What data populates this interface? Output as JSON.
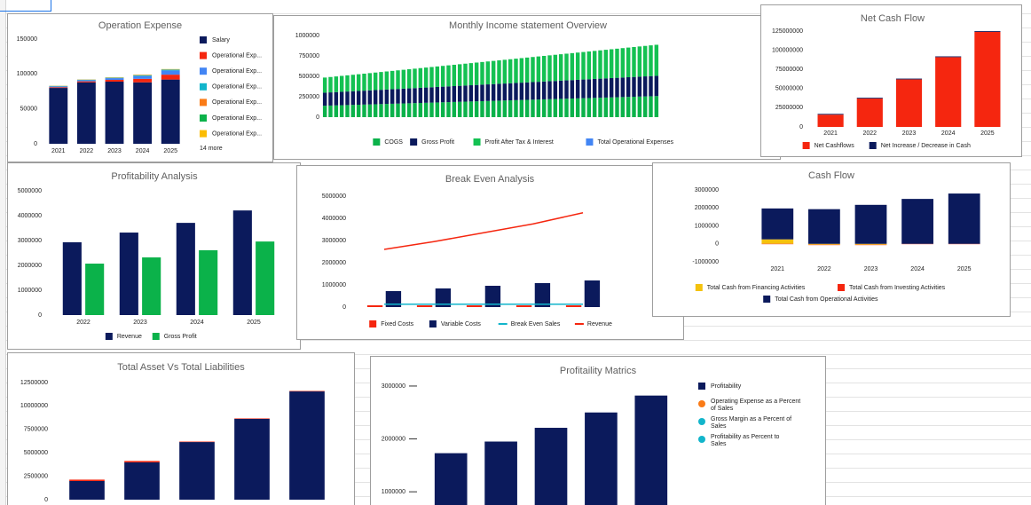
{
  "chart_data": [
    {
      "type": "bar",
      "title": "Operation Expense",
      "stacked": true,
      "grid": false,
      "legend": "right",
      "categories": [
        "2021",
        "2022",
        "2023",
        "2024",
        "2025"
      ],
      "ylim": [
        0,
        150000
      ],
      "yticks": [
        0,
        50000,
        100000,
        150000
      ],
      "series": [
        {
          "name": "Salary",
          "color": "#0b1a5c",
          "values": [
            80000,
            88000,
            89000,
            88000,
            92000
          ]
        },
        {
          "name": "Operational Exp...",
          "color": "#f5260f",
          "values": [
            1000,
            1500,
            2500,
            5000,
            7000
          ]
        },
        {
          "name": "Operational Exp...",
          "color": "#4285f4",
          "values": [
            1000,
            1500,
            2500,
            4000,
            6000
          ]
        },
        {
          "name": "Operational Exp...",
          "color": "#12b5cb",
          "values": [
            500,
            500,
            500,
            1000,
            1000
          ]
        },
        {
          "name": "Operational Exp...",
          "color": "#fa7b17",
          "values": [
            300,
            300,
            300,
            500,
            500
          ]
        },
        {
          "name": "Operational Exp...",
          "color": "#0bb24a",
          "values": [
            200,
            200,
            300,
            300,
            300
          ]
        },
        {
          "name": "Operational Exp...",
          "color": "#fbbc04",
          "values": [
            100,
            100,
            200,
            200,
            200
          ]
        }
      ],
      "legend_more": "14 more"
    },
    {
      "type": "bar",
      "title": "Monthly Income statement Overview",
      "stacked": true,
      "grid": false,
      "legend": "bottom",
      "categories": [
        null,
        null,
        null,
        null,
        null,
        null,
        null,
        null,
        null,
        null,
        null,
        null,
        null,
        null,
        null,
        null,
        null,
        null,
        null,
        null,
        null,
        null,
        null,
        null,
        null,
        null,
        null,
        null,
        null,
        null,
        null,
        null,
        null,
        null,
        null,
        null,
        null,
        null,
        null,
        null,
        null,
        null,
        null,
        null,
        null,
        null,
        null,
        null,
        null,
        null,
        null,
        null,
        null,
        null,
        null,
        null,
        null,
        null,
        null,
        null
      ],
      "ylim": [
        0,
        1000000
      ],
      "yticks": [
        0,
        250000,
        500000,
        750000,
        1000000
      ],
      "series": [
        {
          "name": "COGS",
          "color": "#0bb24a",
          "values": [
            140000,
            142000,
            144000,
            146000,
            148000,
            150000,
            152000,
            154000,
            156000,
            158000,
            160000,
            162000,
            164000,
            166000,
            168000,
            170000,
            172000,
            174000,
            176000,
            178000,
            180000,
            182000,
            184000,
            186000,
            188000,
            190000,
            192000,
            194000,
            196000,
            198000,
            200000,
            202000,
            204000,
            206000,
            208000,
            210000,
            212000,
            214000,
            216000,
            218000,
            220000,
            222000,
            224000,
            226000,
            228000,
            230000,
            232000,
            234000,
            236000,
            238000,
            240000,
            242000,
            244000,
            246000,
            248000,
            250000,
            252000,
            254000,
            256000,
            258000
          ]
        },
        {
          "name": "Gross Profit",
          "color": "#0b1a5c",
          "values": [
            160000,
            161500,
            163000,
            164500,
            166000,
            167500,
            169000,
            170500,
            172000,
            173500,
            175000,
            176500,
            178000,
            179500,
            181000,
            182500,
            184000,
            185500,
            187000,
            188500,
            190000,
            191500,
            193000,
            194500,
            196000,
            197500,
            199000,
            200500,
            202000,
            203500,
            205000,
            206500,
            208000,
            209500,
            211000,
            212500,
            214000,
            215500,
            217000,
            218500,
            220000,
            221500,
            223000,
            224500,
            226000,
            227500,
            229000,
            230500,
            232000,
            233500,
            235000,
            236500,
            238000,
            239500,
            241000,
            242500,
            244000,
            245500,
            247000,
            248500
          ]
        },
        {
          "name": "Profit After Tax & Interest",
          "color": "#14c152",
          "values": [
            185000,
            188300,
            191600,
            194900,
            198200,
            201500,
            204800,
            208100,
            211400,
            214700,
            218000,
            221300,
            224600,
            227900,
            231200,
            234500,
            237800,
            241100,
            244400,
            247700,
            251000,
            254300,
            257600,
            260900,
            264200,
            267500,
            270800,
            274100,
            277400,
            280700,
            284000,
            287300,
            290600,
            293900,
            297200,
            300500,
            303800,
            307100,
            310400,
            313700,
            317000,
            320300,
            323600,
            326900,
            330200,
            333500,
            336800,
            340100,
            343400,
            346700,
            350000,
            353300,
            356600,
            359900,
            363200,
            366500,
            369800,
            373100,
            376400,
            379700
          ]
        },
        {
          "name": "Total Operational Expenses",
          "color": "#4285f4",
          "values": [
            0,
            0,
            0,
            0,
            0,
            0,
            0,
            0,
            0,
            0,
            0,
            0,
            0,
            0,
            0,
            0,
            0,
            0,
            0,
            0,
            0,
            0,
            0,
            0,
            0,
            0,
            0,
            0,
            0,
            0,
            0,
            0,
            0,
            0,
            0,
            0,
            0,
            0,
            0,
            0,
            0,
            0,
            0,
            0,
            0,
            0,
            0,
            0,
            0,
            0,
            0,
            0,
            0,
            0,
            0,
            0,
            0,
            0,
            0,
            0
          ]
        }
      ]
    },
    {
      "type": "bar",
      "title": "Net Cash Flow",
      "stacked": true,
      "grid": false,
      "legend": "bottom",
      "categories": [
        "2021",
        "2022",
        "2023",
        "2024",
        "2025"
      ],
      "ylim": [
        0,
        125000000
      ],
      "yticks": [
        0,
        25000000,
        50000000,
        75000000,
        100000000,
        125000000
      ],
      "series": [
        {
          "name": "Net Cashflows",
          "color": "#f5260f",
          "values": [
            16000000,
            37000000,
            62000000,
            91000000,
            124000000
          ]
        },
        {
          "name": "Net Increase / Decrease in Cash",
          "color": "#0b1a5c",
          "values": [
            1000000,
            1000000,
            1000000,
            1000000,
            1000000
          ]
        }
      ]
    },
    {
      "type": "bar",
      "title": "Profitability Analysis",
      "stacked": false,
      "grid": false,
      "legend": "bottom",
      "categories": [
        "2022",
        "2023",
        "2024",
        "2025"
      ],
      "ylim": [
        0,
        5000000
      ],
      "yticks": [
        0,
        1000000,
        2000000,
        3000000,
        4000000,
        5000000
      ],
      "series": [
        {
          "name": "Revenue",
          "color": "#0b1a5c",
          "values": [
            2930000,
            3320000,
            3710000,
            4210000
          ]
        },
        {
          "name": "Gross Profit",
          "color": "#0bb24a",
          "values": [
            2070000,
            2320000,
            2610000,
            2960000
          ]
        }
      ]
    },
    {
      "type": "combo",
      "title": "Break Even Analysis",
      "stacked": false,
      "grid": false,
      "legend": "bottom",
      "categories": [
        null,
        null,
        null,
        null,
        null
      ],
      "ylim": [
        0,
        5000000
      ],
      "yticks": [
        0,
        1000000,
        2000000,
        3000000,
        4000000,
        5000000
      ],
      "series": [
        {
          "name": "Fixed Costs",
          "kind": "bar",
          "color": "#f5260f",
          "values": [
            80000,
            80000,
            80000,
            80000,
            80000
          ]
        },
        {
          "name": "Variable Costs",
          "kind": "bar",
          "color": "#0b1a5c",
          "values": [
            720000,
            840000,
            960000,
            1080000,
            1200000
          ]
        },
        {
          "name": "Break Even Sales",
          "kind": "line",
          "color": "#12b5cb",
          "values": [
            130000,
            130000,
            130000,
            130000,
            130000
          ]
        },
        {
          "name": "Revenue",
          "kind": "line",
          "color": "#f5260f",
          "values": [
            2600000,
            2950000,
            3350000,
            3750000,
            4250000
          ]
        }
      ]
    },
    {
      "type": "bar",
      "title": "Cash Flow",
      "stacked": true,
      "grid": false,
      "legend": "bottom",
      "categories": [
        "2021",
        "2022",
        "2023",
        "2024",
        "2025"
      ],
      "ylim": [
        -1000000,
        3000000
      ],
      "yticks": [
        -1000000,
        0,
        1000000,
        2000000,
        3000000
      ],
      "series": [
        {
          "name": "Total Cash from Financing Activities",
          "color": "#f4c20d",
          "values": [
            250000,
            -50000,
            -50000,
            0,
            0
          ]
        },
        {
          "name": "Total Cash from Investing Activities",
          "color": "#f5260f",
          "values": [
            -20000,
            -20000,
            -20000,
            -20000,
            -20000
          ]
        },
        {
          "name": "Total Cash from Operational Activities",
          "color": "#0b1a5c",
          "values": [
            1720000,
            1930000,
            2170000,
            2500000,
            2800000
          ]
        }
      ]
    },
    {
      "type": "bar",
      "title": "Total Asset Vs Total Liabilities",
      "stacked": true,
      "grid": false,
      "categories": [
        null,
        null,
        null,
        null,
        null
      ],
      "ylim": [
        0,
        12500000
      ],
      "yticks": [
        0,
        2500000,
        5000000,
        7500000,
        10000000,
        12500000
      ],
      "series": [
        {
          "color": "#0b1a5c",
          "values": [
            1990000,
            3980000,
            6150000,
            8620000,
            11550000
          ]
        },
        {
          "color": "#f5260f",
          "values": [
            150000,
            150000,
            50000,
            50000,
            50000
          ]
        }
      ]
    },
    {
      "type": "combo",
      "title": "Profitaility Matrics",
      "stacked": false,
      "grid": false,
      "tick_marks": true,
      "legend": "right",
      "line_marker": "circle",
      "categories": [
        null,
        null,
        null,
        null,
        null
      ],
      "ylim": [
        750000,
        3100000
      ],
      "yticks": [
        1000000,
        2000000,
        3000000
      ],
      "series": [
        {
          "name": "Profitability",
          "kind": "bar",
          "color": "#0b1a5c",
          "values": [
            1730000,
            1950000,
            2210000,
            2500000,
            2820000
          ]
        },
        {
          "name": "Operating Expense as a Percent of Sales",
          "kind": "line",
          "color": "#fa7b17",
          "values": [
            null,
            null,
            null,
            null,
            null
          ]
        },
        {
          "name": "Gross Margin as a Percent of Sales",
          "kind": "line",
          "color": "#12b5cb",
          "values": [
            null,
            null,
            null,
            null,
            null
          ]
        },
        {
          "name": "Profitability as Percent to Sales",
          "kind": "line",
          "color": "#12b5cb",
          "values": [
            null,
            null,
            null,
            null,
            null
          ]
        }
      ]
    }
  ]
}
